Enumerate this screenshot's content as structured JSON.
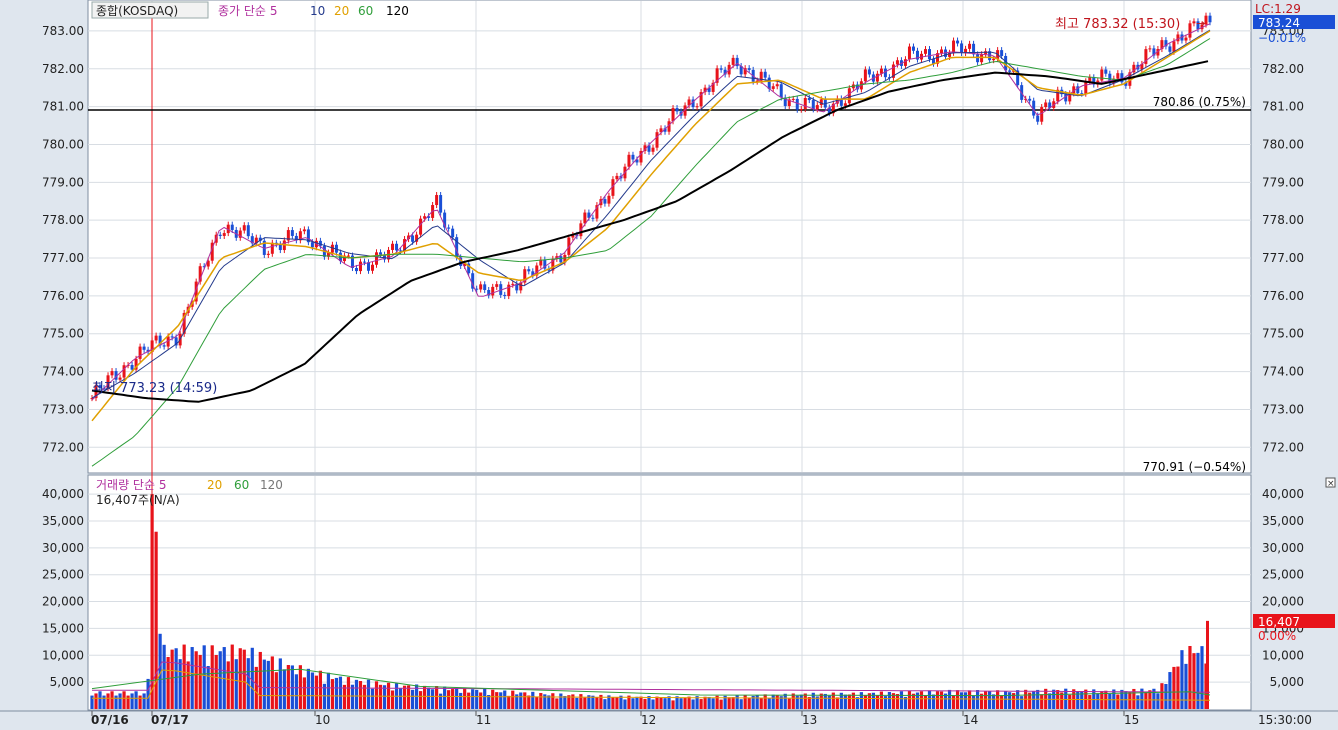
{
  "header": {
    "symbol": "종합(KOSDAQ)",
    "indicator_label": "종가 단순",
    "ma_periods": [
      "5",
      "10",
      "20",
      "60",
      "120"
    ],
    "volume_label": "거래량 단순",
    "volume_ma_periods": [
      "5",
      "20",
      "60",
      "120"
    ],
    "volume_readout": "16,407주(N/A)"
  },
  "price_panel": {
    "high_label": "최고 783.32 (15:30)",
    "low_label": "최저 773.23 (14:59)",
    "ref_line_label": "780.86 (0.75%)",
    "lower_ref_label": "770.91 (−0.54%)",
    "lc_label": "LC:1.29",
    "current_price": "783.24",
    "current_change": "−0.01%",
    "y_ticks": [
      "783.00",
      "782.00",
      "781.00",
      "780.00",
      "779.00",
      "778.00",
      "777.00",
      "776.00",
      "775.00",
      "774.00",
      "773.00",
      "772.00"
    ]
  },
  "volume_panel": {
    "y_ticks": [
      "40,000",
      "35,000",
      "30,000",
      "25,000",
      "20,000",
      "15,000",
      "10,000",
      "5,000"
    ],
    "current_volume": "16,407",
    "current_volume_change": "0.00%"
  },
  "x_axis": {
    "labels": [
      "07/16",
      "07/17",
      "10",
      "11",
      "12",
      "13",
      "14",
      "15"
    ],
    "time_readout": "15:30:00"
  },
  "colors": {
    "up": "#e8131a",
    "down": "#1a4fd6",
    "ma5": "#b0309e",
    "ma10": "#243a8c",
    "ma20": "#e0a000",
    "ma60": "#2f9e3a",
    "ma120": "#000000"
  },
  "chart_data": {
    "type": "line",
    "title": "종합(KOSDAQ)",
    "series": [
      {
        "name": "종가",
        "values": [
          773.3,
          774.4,
          775.0,
          777.9,
          777.3,
          777.6,
          776.8,
          777.1,
          778.4,
          776.0,
          776.4,
          777.2,
          778.8,
          780.1,
          781.2,
          782.2,
          781.3,
          780.9,
          781.7,
          782.3,
          782.5,
          782.4,
          780.8,
          781.6,
          781.8,
          782.7,
          783.24
        ]
      },
      {
        "name": "20",
        "values": [
          772.7,
          774.1,
          775.2,
          777.0,
          777.4,
          777.3,
          777.0,
          777.1,
          777.4,
          776.6,
          776.4,
          776.9,
          777.8,
          779.2,
          780.5,
          781.6,
          781.7,
          781.2,
          781.2,
          781.9,
          782.3,
          782.3,
          781.5,
          781.3,
          781.6,
          782.3,
          783.0
        ]
      },
      {
        "name": "60",
        "values": [
          771.5,
          772.3,
          773.6,
          775.6,
          776.7,
          777.1,
          777.0,
          777.1,
          777.1,
          777.0,
          776.9,
          777.0,
          777.2,
          778.1,
          779.4,
          780.6,
          781.2,
          781.4,
          781.6,
          781.7,
          781.9,
          782.2,
          782.0,
          781.8,
          781.7,
          782.1,
          782.8
        ]
      },
      {
        "name": "120",
        "values": [
          773.5,
          773.3,
          773.2,
          773.5,
          774.2,
          775.5,
          776.4,
          776.9,
          777.2,
          777.6,
          778.0,
          778.5,
          779.3,
          780.2,
          780.9,
          781.4,
          781.7,
          781.9,
          781.8,
          781.6,
          781.9,
          782.2
        ]
      }
    ],
    "volume": [
      3000,
      4000,
      40000,
      10000,
      7000,
      5000,
      4000,
      3500,
      3000,
      2500,
      2200,
      2000,
      2000,
      2200,
      2500,
      2600,
      2800,
      3000,
      2900,
      3200,
      3000,
      3300,
      16407
    ],
    "ylim": [
      771.4,
      783.5
    ],
    "volume_ylim": [
      0,
      43000
    ],
    "reference_line": 780.86,
    "current": 783.24
  }
}
